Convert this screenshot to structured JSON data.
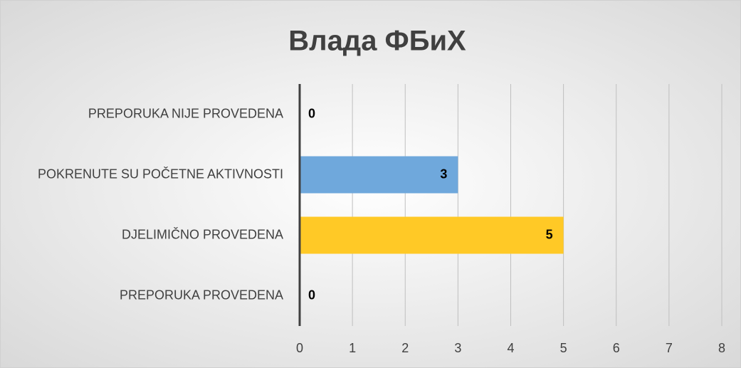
{
  "chart_data": {
    "type": "hbar",
    "title": "Влада ФБиХ",
    "categories": [
      "PREPORUKA NIJE PROVEDENA",
      "POKRENUTE SU POČETNE AKTIVNOSTI",
      "DJELIMIČNO PROVEDENA",
      "PREPORUKA PROVEDENA"
    ],
    "values": [
      0,
      3,
      5,
      0
    ],
    "colors": [
      "#c0504d",
      "#6fa8dc",
      "#ffc926",
      "#70ad47"
    ],
    "xlim": [
      0,
      8
    ],
    "xticks": [
      0,
      1,
      2,
      3,
      4,
      5,
      6,
      7,
      8
    ],
    "grid": true
  }
}
